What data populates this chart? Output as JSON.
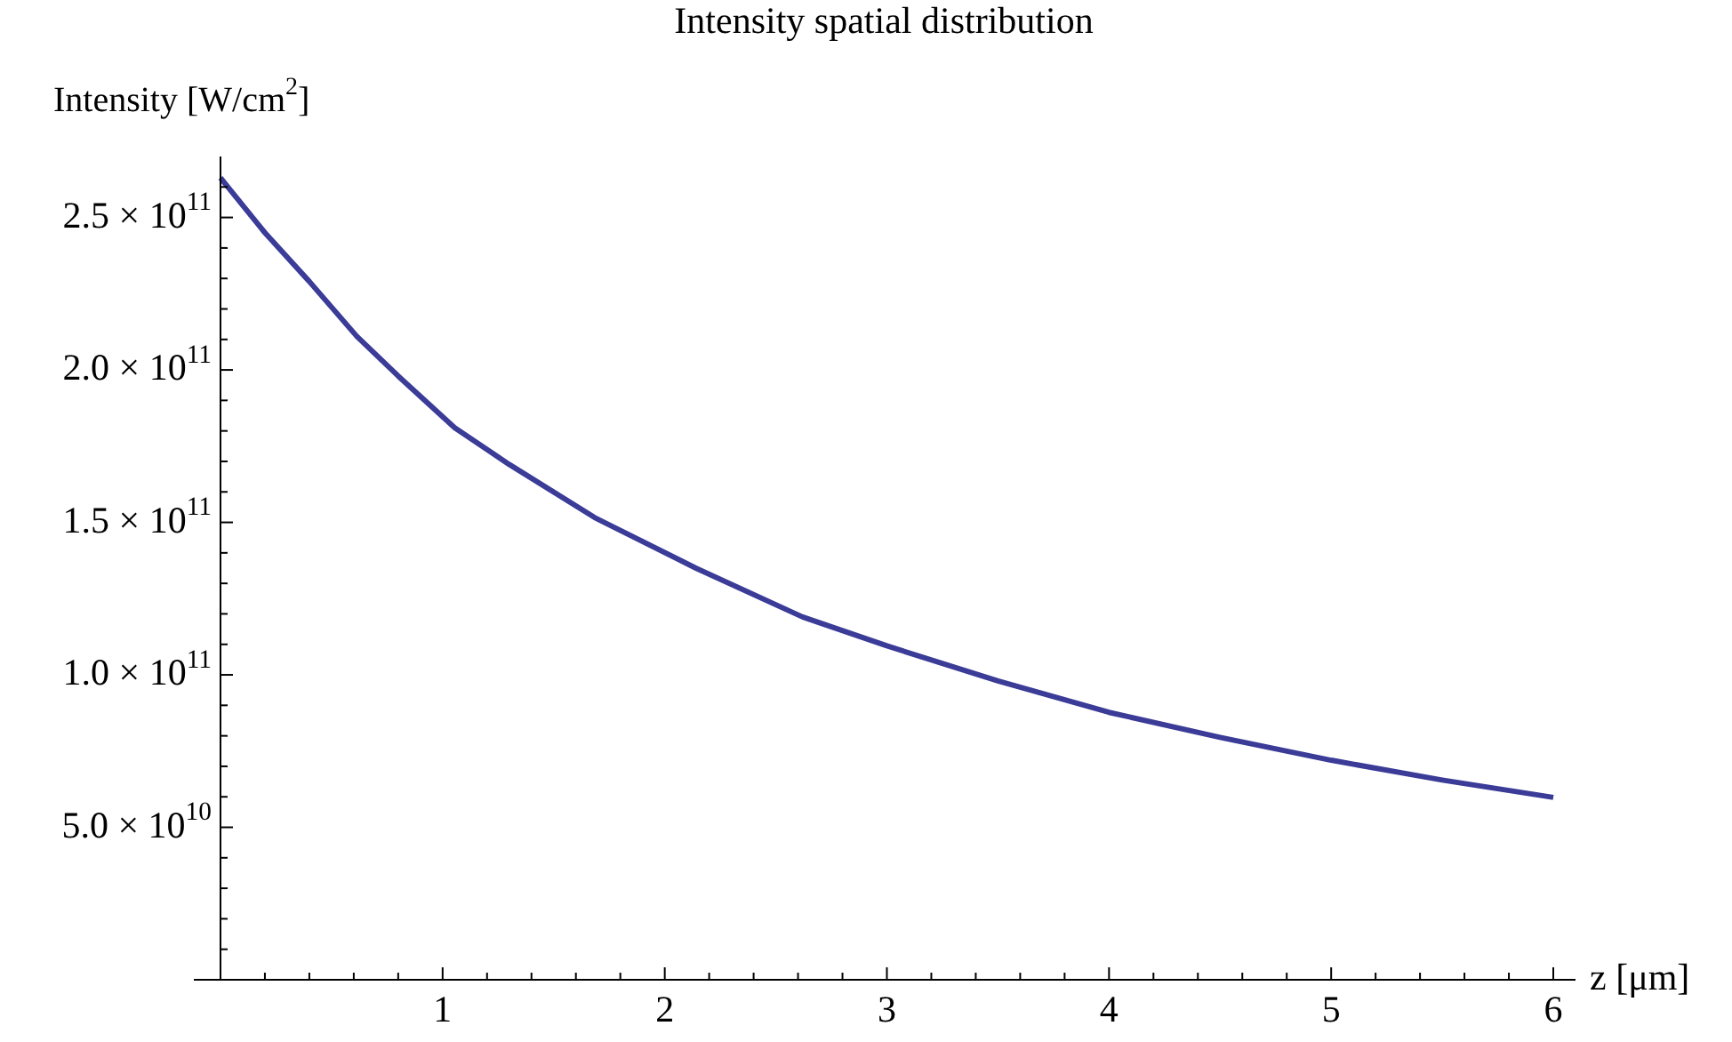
{
  "chart_data": {
    "type": "line",
    "title": "Intensity spatial distribution",
    "xlabel": "z [μm]",
    "ylabel": "Intensity [W/cm$^{2}$]",
    "x": [
      0,
      0.2,
      0.4,
      0.614,
      0.8,
      1.055,
      1.3,
      1.684,
      2.14,
      2.62,
      3,
      3.5,
      4,
      4.5,
      5,
      5.5,
      6
    ],
    "series": [
      {
        "color": "#3b3b98",
        "values": [
          263000000000.0,
          245000000000.0,
          229000000000.0,
          211000000000.0,
          198000000000.0,
          181000000000.0,
          169000000000.0,
          151600000000.0,
          135000000000.0,
          119000000000.0,
          109500000000.0,
          98000000000.0,
          87700000000.0,
          79500000000.0,
          72000000000.0,
          65500000000.0,
          59800000000.0
        ]
      }
    ],
    "xlim": [
      -0.12,
      6.1
    ],
    "ylim": [
      0,
      270000000000.0
    ],
    "xticks": [
      1,
      2,
      3,
      4,
      5,
      6,
      {
        "value": 0.2,
        "label": null
      },
      {
        "value": 0.4,
        "label": null
      },
      {
        "value": 0.6,
        "label": null
      },
      {
        "value": 0.8,
        "label": null
      },
      {
        "value": 1.2,
        "label": null
      },
      {
        "value": 1.4,
        "label": null
      },
      {
        "value": 1.6,
        "label": null
      },
      {
        "value": 1.8,
        "label": null
      },
      {
        "value": 2.2,
        "label": null
      },
      {
        "value": 2.4,
        "label": null
      },
      {
        "value": 2.6,
        "label": null
      },
      {
        "value": 2.8,
        "label": null
      },
      {
        "value": 3.2,
        "label": null
      },
      {
        "value": 3.4,
        "label": null
      },
      {
        "value": 3.6,
        "label": null
      },
      {
        "value": 3.8,
        "label": null
      },
      {
        "value": 4.2,
        "label": null
      },
      {
        "value": 4.4,
        "label": null
      },
      {
        "value": 4.6,
        "label": null
      },
      {
        "value": 4.8,
        "label": null
      },
      {
        "value": 5.2,
        "label": null
      },
      {
        "value": 5.4,
        "label": null
      },
      {
        "value": 5.6,
        "label": null
      },
      {
        "value": 5.8,
        "label": null
      }
    ],
    "yticks": [
      {
        "value": 50000000000.0,
        "label": "5.0 × 10$^{10}$"
      },
      {
        "value": 100000000000.0,
        "label": "1.0 × 10$^{11}$"
      },
      {
        "value": 150000000000.0,
        "label": "1.5 × 10$^{11}$"
      },
      {
        "value": 200000000000.0,
        "label": "2.0 × 10$^{11}$"
      },
      {
        "value": 250000000000.0,
        "label": "2.5 × 10$^{11}$"
      },
      {
        "value": 10000000000.0,
        "label": null
      },
      {
        "value": 20000000000.0,
        "label": null
      },
      {
        "value": 30000000000.0,
        "label": null
      },
      {
        "value": 40000000000.0,
        "label": null
      },
      {
        "value": 60000000000.0,
        "label": null
      },
      {
        "value": 70000000000.0,
        "label": null
      },
      {
        "value": 80000000000.0,
        "label": null
      },
      {
        "value": 90000000000.0,
        "label": null
      },
      {
        "value": 110000000000.0,
        "label": null
      },
      {
        "value": 120000000000.0,
        "label": null
      },
      {
        "value": 130000000000.0,
        "label": null
      },
      {
        "value": 140000000000.0,
        "label": null
      },
      {
        "value": 160000000000.0,
        "label": null
      },
      {
        "value": 170000000000.0,
        "label": null
      },
      {
        "value": 180000000000.0,
        "label": null
      },
      {
        "value": 190000000000.0,
        "label": null
      },
      {
        "value": 210000000000.0,
        "label": null
      },
      {
        "value": 220000000000.0,
        "label": null
      },
      {
        "value": 230000000000.0,
        "label": null
      },
      {
        "value": 240000000000.0,
        "label": null
      },
      {
        "value": 260000000000.0,
        "label": null
      }
    ],
    "grid": false,
    "legend": false,
    "marker": "none",
    "line_style": "solid"
  }
}
